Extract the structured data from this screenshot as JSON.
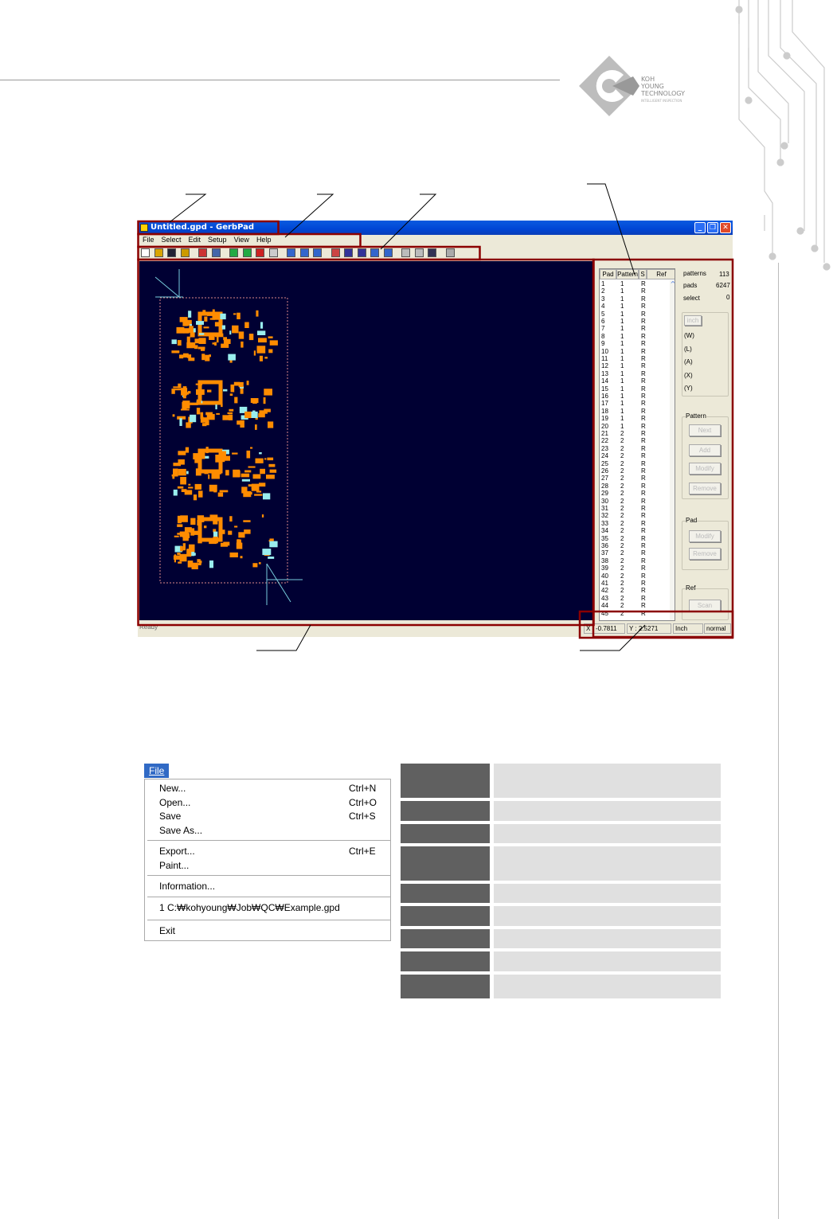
{
  "logo": {
    "text": [
      "KOH",
      "YOUNG",
      "TECHNOLOGY",
      "INTELLIGENT INSPECTION"
    ]
  },
  "app": {
    "title": "Untitled.gpd - GerbPad",
    "window_buttons": [
      "minimize",
      "restore",
      "close"
    ],
    "menu": [
      "File",
      "Select",
      "Edit",
      "Setup",
      "View",
      "Help"
    ],
    "toolbar_icons": [
      "new-icon",
      "open-icon",
      "save-icon",
      "print-icon",
      "pad-w-icon",
      "pad-f-icon",
      "flag-f-icon",
      "flag-tr-icon",
      "flag-pad-icon",
      "disabled-icon",
      "zoom-in-icon",
      "zoom-out-icon",
      "zoom-fit-icon",
      "view-icon",
      "pattern-icon",
      "pattern2-icon",
      "align-h-icon",
      "align-v-icon",
      "line-icon",
      "line2-icon",
      "grid-icon",
      "disabled2-icon"
    ],
    "list": {
      "headers": [
        "Pad",
        "Pattern",
        "S",
        "Ref"
      ],
      "rows": [
        [
          1,
          1,
          "R"
        ],
        [
          2,
          1,
          "R"
        ],
        [
          3,
          1,
          "R"
        ],
        [
          4,
          1,
          "R"
        ],
        [
          5,
          1,
          "R"
        ],
        [
          6,
          1,
          "R"
        ],
        [
          7,
          1,
          "R"
        ],
        [
          8,
          1,
          "R"
        ],
        [
          9,
          1,
          "R"
        ],
        [
          10,
          1,
          "R"
        ],
        [
          11,
          1,
          "R"
        ],
        [
          12,
          1,
          "R"
        ],
        [
          13,
          1,
          "R"
        ],
        [
          14,
          1,
          "R"
        ],
        [
          15,
          1,
          "R"
        ],
        [
          16,
          1,
          "R"
        ],
        [
          17,
          1,
          "R"
        ],
        [
          18,
          1,
          "R"
        ],
        [
          19,
          1,
          "R"
        ],
        [
          20,
          1,
          "R"
        ],
        [
          21,
          2,
          "R"
        ],
        [
          22,
          2,
          "R"
        ],
        [
          23,
          2,
          "R"
        ],
        [
          24,
          2,
          "R"
        ],
        [
          25,
          2,
          "R"
        ],
        [
          26,
          2,
          "R"
        ],
        [
          27,
          2,
          "R"
        ],
        [
          28,
          2,
          "R"
        ],
        [
          29,
          2,
          "R"
        ],
        [
          30,
          2,
          "R"
        ],
        [
          31,
          2,
          "R"
        ],
        [
          32,
          2,
          "R"
        ],
        [
          33,
          2,
          "R"
        ],
        [
          34,
          2,
          "R"
        ],
        [
          35,
          2,
          "R"
        ],
        [
          36,
          2,
          "R"
        ],
        [
          37,
          2,
          "R"
        ],
        [
          38,
          2,
          "R"
        ],
        [
          39,
          2,
          "R"
        ],
        [
          40,
          2,
          "R"
        ],
        [
          41,
          2,
          "R"
        ],
        [
          42,
          2,
          "R"
        ],
        [
          43,
          2,
          "R"
        ],
        [
          44,
          2,
          "R"
        ],
        [
          45,
          2,
          "R"
        ]
      ]
    },
    "stats": {
      "patterns_label": "patterns",
      "patterns": "113",
      "pads_label": "pads",
      "pads": "6247",
      "select_label": "select",
      "select": "0"
    },
    "unit_button": "inch",
    "fields": [
      "(W)",
      "(L)",
      "(A)",
      "(X)",
      "(Y)"
    ],
    "pattern_group": {
      "label": "Pattern",
      "buttons": [
        "Next",
        "Add",
        "Modify",
        "Remove"
      ]
    },
    "pad_group": {
      "label": "Pad",
      "buttons": [
        "Modify",
        "Remove"
      ]
    },
    "ref_group": {
      "label": "Ref",
      "buttons": [
        "Scan"
      ]
    },
    "status": {
      "text": "Ready",
      "x_label": "X :",
      "x": "-0.7811",
      "y_label": "Y :",
      "y": "2.5271",
      "unit": "Inch",
      "mode": "normal"
    },
    "colors": {
      "canvas": "#000033",
      "pads": "#ff8c00",
      "titlebar": "#0046d5",
      "callout_box": "#8b0000"
    }
  },
  "file_menu": {
    "tab": "File",
    "items": [
      {
        "label": "New...",
        "shortcut": "Ctrl+N"
      },
      {
        "label": "Open...",
        "shortcut": "Ctrl+O"
      },
      {
        "label": "Save",
        "shortcut": "Ctrl+S"
      },
      {
        "label": "Save As...",
        "shortcut": ""
      },
      {
        "label": "Export...",
        "shortcut": "Ctrl+E"
      },
      {
        "label": "Paint...",
        "shortcut": ""
      },
      {
        "label": "Information...",
        "shortcut": ""
      },
      {
        "label": "1 C:₩kohyoung₩Job₩QC₩Example.gpd",
        "shortcut": ""
      },
      {
        "label": "Exit",
        "shortcut": ""
      }
    ]
  }
}
